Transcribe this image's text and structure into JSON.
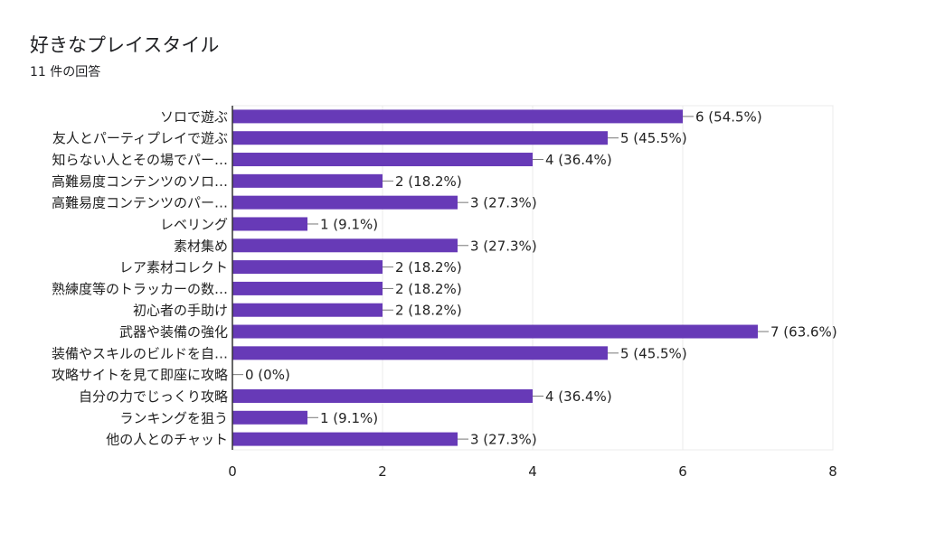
{
  "chart_data": {
    "type": "bar",
    "orientation": "horizontal",
    "title": "好きなプレイスタイル",
    "subtitle": "11 件の回答",
    "categories": [
      "ソロで遊ぶ",
      "友人とパーティプレイで遊ぶ",
      "知らない人とその場でパー…",
      "高難易度コンテンツのソロ…",
      "高難易度コンテンツのパー…",
      "レベリング",
      "素材集め",
      "レア素材コレクト",
      "熟練度等のトラッカーの数…",
      "初心者の手助け",
      "武器や装備の強化",
      "装備やスキルのビルドを自…",
      "攻略サイトを見て即座に攻略",
      "自分の力でじっくり攻略",
      "ランキングを狙う",
      "他の人とのチャット"
    ],
    "values": [
      6,
      5,
      4,
      2,
      3,
      1,
      3,
      2,
      2,
      2,
      7,
      5,
      0,
      4,
      1,
      3
    ],
    "data_labels": [
      "6 (54.5%)",
      "5 (45.5%)",
      "4 (36.4%)",
      "2 (18.2%)",
      "3 (27.3%)",
      "1 (9.1%)",
      "3 (27.3%)",
      "2 (18.2%)",
      "2 (18.2%)",
      "2 (18.2%)",
      "7 (63.6%)",
      "5 (45.5%)",
      "0 (0%)",
      "4 (36.4%)",
      "1 (9.1%)",
      "3 (27.3%)"
    ],
    "xlim": [
      0,
      8
    ],
    "xticks": [
      "0",
      "2",
      "4",
      "6",
      "8"
    ],
    "xlabel": "",
    "ylabel": "",
    "grid": true,
    "bar_color": "#673ab7"
  }
}
